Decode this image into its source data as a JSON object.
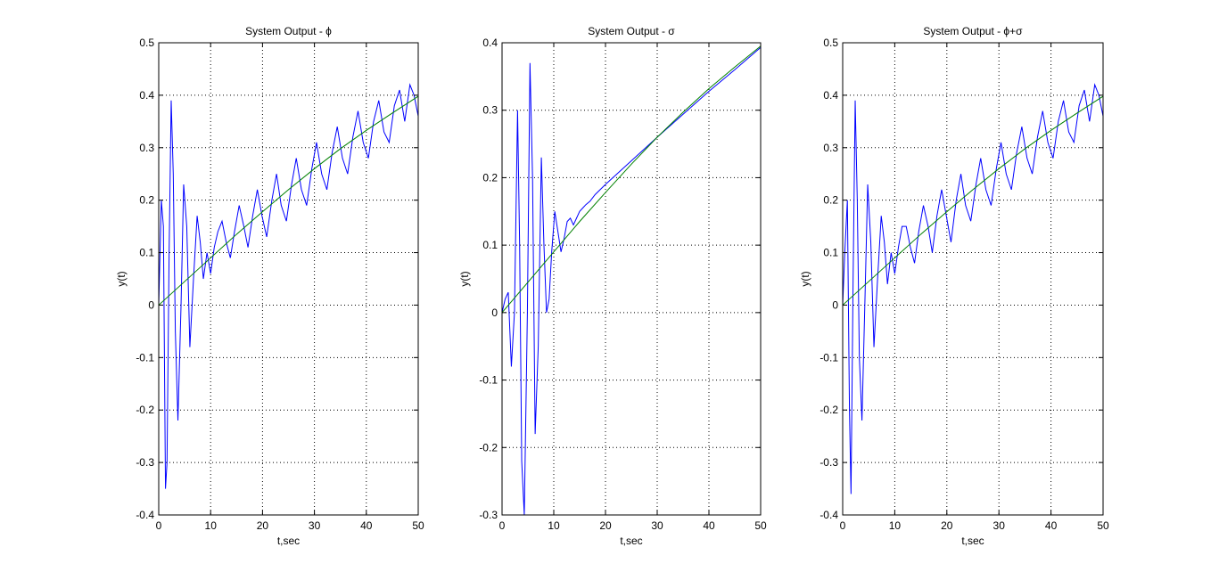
{
  "figure": {
    "background": "#ffffff",
    "axes_color": "#000000",
    "grid_color": "#000000"
  },
  "chart_data": [
    {
      "type": "line",
      "title": "System Output - ϕ",
      "xlabel": "t,sec",
      "ylabel": "y(t)",
      "xlim": [
        0,
        50
      ],
      "ylim": [
        -0.4,
        0.5
      ],
      "xticks": [
        0,
        10,
        20,
        30,
        40,
        50
      ],
      "xtick_labels": [
        "0",
        "10",
        "20",
        "30",
        "40",
        "50"
      ],
      "yticks": [
        -0.4,
        -0.3,
        -0.2,
        -0.1,
        0,
        0.1,
        0.2,
        0.3,
        0.4,
        0.5
      ],
      "ytick_labels": [
        "-0.4",
        "-0.3",
        "-0.2",
        "-0.1",
        "0",
        "0.1",
        "0.2",
        "0.3",
        "0.4",
        "0.5"
      ],
      "grid": true,
      "series": [
        {
          "color": "#0000ff",
          "x": [
            0,
            0.5,
            0.9,
            1.3,
            1.6,
            2.0,
            2.4,
            2.8,
            3.2,
            3.7,
            4.3,
            4.8,
            5.4,
            6.0,
            6.7,
            7.4,
            8.0,
            8.6,
            9.3,
            10.0,
            10.7,
            11.4,
            12.2,
            13.0,
            13.8,
            14.6,
            15.5,
            16.4,
            17.2,
            18.1,
            19.0,
            19.9,
            20.8,
            21.8,
            22.7,
            23.6,
            24.6,
            25.6,
            26.5,
            27.5,
            28.5,
            29.5,
            30.4,
            31.4,
            32.4,
            33.4,
            34.4,
            35.4,
            36.4,
            37.4,
            38.4,
            39.4,
            40.4,
            41.4,
            42.4,
            43.4,
            44.4,
            45.4,
            46.4,
            47.4,
            48.4,
            49.2,
            50
          ],
          "y": [
            0.0,
            0.2,
            0.15,
            -0.35,
            -0.3,
            0.1,
            0.39,
            0.25,
            -0.05,
            -0.22,
            0.0,
            0.23,
            0.15,
            -0.08,
            0.05,
            0.17,
            0.12,
            0.05,
            0.1,
            0.06,
            0.11,
            0.14,
            0.16,
            0.12,
            0.09,
            0.14,
            0.19,
            0.15,
            0.11,
            0.17,
            0.22,
            0.17,
            0.13,
            0.2,
            0.25,
            0.19,
            0.16,
            0.23,
            0.28,
            0.22,
            0.19,
            0.26,
            0.31,
            0.25,
            0.22,
            0.29,
            0.34,
            0.28,
            0.25,
            0.32,
            0.37,
            0.31,
            0.28,
            0.35,
            0.39,
            0.33,
            0.31,
            0.38,
            0.41,
            0.35,
            0.42,
            0.4,
            0.36
          ]
        },
        {
          "color": "#008000",
          "x": [
            0,
            5,
            10,
            15,
            20,
            25,
            30,
            35,
            40,
            45,
            50
          ],
          "y": [
            0.0,
            0.045,
            0.09,
            0.135,
            0.178,
            0.22,
            0.26,
            0.298,
            0.333,
            0.366,
            0.398
          ]
        }
      ]
    },
    {
      "type": "line",
      "title": "System Output - σ",
      "xlabel": "t,sec",
      "ylabel": "y(t)",
      "xlim": [
        0,
        50
      ],
      "ylim": [
        -0.3,
        0.4
      ],
      "xticks": [
        0,
        10,
        20,
        30,
        40,
        50
      ],
      "xtick_labels": [
        "0",
        "10",
        "20",
        "30",
        "40",
        "50"
      ],
      "yticks": [
        -0.3,
        -0.2,
        -0.1,
        0,
        0.1,
        0.2,
        0.3,
        0.4
      ],
      "ytick_labels": [
        "-0.3",
        "-0.2",
        "-0.1",
        "0",
        "0.1",
        "0.2",
        "0.3",
        "0.4"
      ],
      "grid": true,
      "series": [
        {
          "color": "#0000ff",
          "x": [
            0,
            0.6,
            1.2,
            1.8,
            2.4,
            3.0,
            3.4,
            3.8,
            4.3,
            4.9,
            5.4,
            5.9,
            6.4,
            7.0,
            7.6,
            8.1,
            8.6,
            9.1,
            9.6,
            10.2,
            10.8,
            11.4,
            12.0,
            12.6,
            13.2,
            13.8,
            14.4,
            15.0,
            15.6,
            16.2,
            17.0,
            18.0,
            20,
            25,
            30,
            35,
            40,
            45,
            50
          ],
          "y": [
            0.0,
            0.02,
            0.03,
            -0.08,
            0.0,
            0.3,
            0.1,
            -0.22,
            -0.3,
            0.0,
            0.37,
            0.2,
            -0.18,
            -0.05,
            0.23,
            0.1,
            0.0,
            0.02,
            0.09,
            0.15,
            0.12,
            0.09,
            0.11,
            0.135,
            0.14,
            0.13,
            0.14,
            0.15,
            0.155,
            0.16,
            0.165,
            0.175,
            0.19,
            0.225,
            0.26,
            0.294,
            0.328,
            0.36,
            0.393
          ]
        },
        {
          "color": "#008000",
          "x": [
            0,
            5,
            10,
            15,
            20,
            25,
            30,
            35,
            40,
            45,
            50
          ],
          "y": [
            0.0,
            0.045,
            0.09,
            0.135,
            0.178,
            0.22,
            0.26,
            0.297,
            0.332,
            0.364,
            0.395
          ]
        }
      ]
    },
    {
      "type": "line",
      "title": "System Output - ϕ+σ",
      "xlabel": "t,sec",
      "ylabel": "y(t)",
      "xlim": [
        0,
        50
      ],
      "ylim": [
        -0.4,
        0.5
      ],
      "xticks": [
        0,
        10,
        20,
        30,
        40,
        50
      ],
      "xtick_labels": [
        "0",
        "10",
        "20",
        "30",
        "40",
        "50"
      ],
      "yticks": [
        -0.4,
        -0.3,
        -0.2,
        -0.1,
        0,
        0.1,
        0.2,
        0.3,
        0.4,
        0.5
      ],
      "ytick_labels": [
        "-0.4",
        "-0.3",
        "-0.2",
        "-0.1",
        "0",
        "0.1",
        "0.2",
        "0.3",
        "0.4",
        "0.5"
      ],
      "grid": true,
      "series": [
        {
          "color": "#0000ff",
          "x": [
            0,
            0.4,
            0.9,
            1.3,
            1.6,
            2.0,
            2.4,
            2.8,
            3.2,
            3.7,
            4.3,
            4.8,
            5.4,
            6.0,
            6.7,
            7.4,
            8.0,
            8.6,
            9.3,
            10.0,
            10.7,
            11.4,
            12.2,
            13.0,
            13.8,
            14.6,
            15.5,
            16.4,
            17.2,
            18.1,
            19.0,
            19.9,
            20.8,
            21.8,
            22.7,
            23.6,
            24.6,
            25.6,
            26.5,
            27.5,
            28.5,
            29.5,
            30.4,
            31.4,
            32.4,
            33.4,
            34.4,
            35.4,
            36.4,
            37.4,
            38.4,
            39.4,
            40.4,
            41.4,
            42.4,
            43.4,
            44.4,
            45.4,
            46.4,
            47.4,
            48.4,
            49.2,
            50
          ],
          "y": [
            0.0,
            0.1,
            0.2,
            -0.2,
            -0.36,
            0.05,
            0.39,
            0.2,
            -0.1,
            -0.22,
            0.02,
            0.23,
            0.12,
            -0.08,
            0.05,
            0.17,
            0.12,
            0.04,
            0.1,
            0.06,
            0.11,
            0.15,
            0.15,
            0.11,
            0.08,
            0.14,
            0.19,
            0.15,
            0.1,
            0.17,
            0.22,
            0.17,
            0.12,
            0.2,
            0.25,
            0.19,
            0.16,
            0.23,
            0.28,
            0.22,
            0.19,
            0.26,
            0.31,
            0.25,
            0.22,
            0.29,
            0.34,
            0.28,
            0.25,
            0.32,
            0.37,
            0.31,
            0.28,
            0.35,
            0.39,
            0.33,
            0.31,
            0.38,
            0.41,
            0.35,
            0.42,
            0.4,
            0.36
          ]
        },
        {
          "color": "#008000",
          "x": [
            0,
            5,
            10,
            15,
            20,
            25,
            30,
            35,
            40,
            45,
            50
          ],
          "y": [
            0.0,
            0.045,
            0.09,
            0.135,
            0.178,
            0.22,
            0.26,
            0.298,
            0.333,
            0.366,
            0.398
          ]
        }
      ]
    }
  ]
}
